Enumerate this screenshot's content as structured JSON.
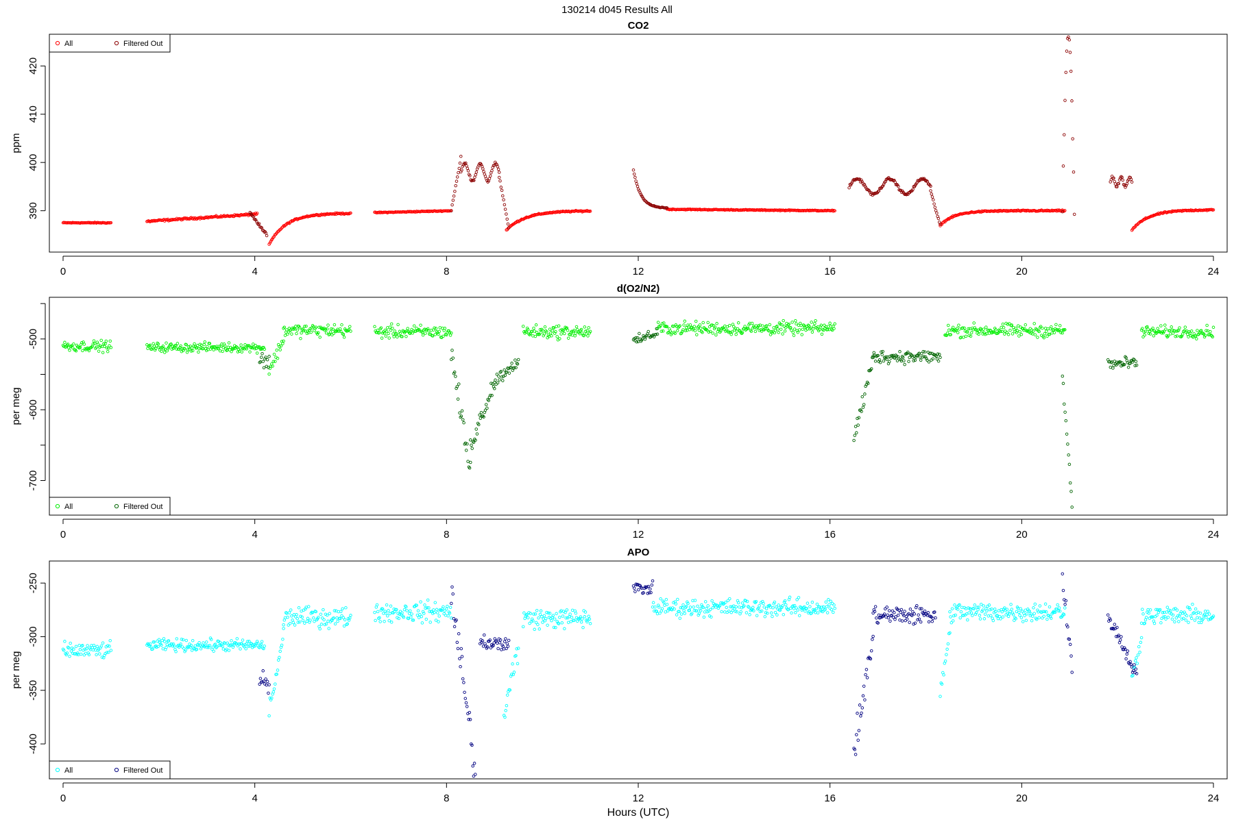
{
  "figure": {
    "title": "130214   d045   Results All"
  },
  "chart_data": [
    {
      "type": "scatter",
      "title": "CO2",
      "xlabel": "",
      "ylabel": "ppm",
      "xlim": [
        0,
        24
      ],
      "ylim": [
        382,
        426
      ],
      "xticks": [
        0,
        4,
        8,
        12,
        16,
        20,
        24
      ],
      "yticks": [
        390,
        400,
        410,
        420
      ],
      "legend_position": "top-left",
      "series": [
        {
          "name": "All",
          "color": "#ff0000",
          "segments": [
            {
              "x0": 0.0,
              "x1": 1.0,
              "shape": "flat",
              "level": 387.5,
              "noise": 0.1
            },
            {
              "x0": 1.75,
              "x1": 4.05,
              "shape": "linear",
              "from": 387.8,
              "to": 389.3,
              "noise": 0.2
            },
            {
              "x0": 4.3,
              "x1": 6.0,
              "shape": "recover",
              "from": 383.0,
              "to": 389.5,
              "tau": 0.35
            },
            {
              "x0": 6.5,
              "x1": 8.1,
              "shape": "linear",
              "from": 389.6,
              "to": 390.0,
              "noise": 0.1
            },
            {
              "x0": 9.25,
              "x1": 11.0,
              "shape": "recover",
              "from": 386.0,
              "to": 390.0,
              "tau": 0.4
            },
            {
              "x0": 12.6,
              "x1": 16.1,
              "shape": "linear",
              "from": 390.3,
              "to": 390.0,
              "noise": 0.1
            },
            {
              "x0": 18.3,
              "x1": 20.9,
              "shape": "recover",
              "from": 387.0,
              "to": 390.0,
              "tau": 0.3
            },
            {
              "x0": 22.3,
              "x1": 24.0,
              "shape": "recover",
              "from": 386.0,
              "to": 390.2,
              "tau": 0.35
            }
          ]
        },
        {
          "name": "Filtered Out",
          "color": "#8b0000",
          "segments": [
            {
              "x0": 3.9,
              "x1": 4.25,
              "shape": "linear",
              "from": 389.6,
              "to": 385.0,
              "noise": 0.3
            },
            {
              "x0": 8.1,
              "x1": 8.3,
              "shape": "linear",
              "from": 390.0,
              "to": 401.0,
              "noise": 0.3
            },
            {
              "x0": 8.3,
              "x1": 9.1,
              "shape": "wave",
              "level": 398.0,
              "amp": 1.8,
              "noise": 0.3
            },
            {
              "x0": 9.1,
              "x1": 9.3,
              "shape": "linear",
              "from": 397.0,
              "to": 386.5,
              "noise": 0.3
            },
            {
              "x0": 11.9,
              "x1": 12.6,
              "shape": "decay",
              "from": 398.5,
              "to": 390.5,
              "tau": 0.15
            },
            {
              "x0": 16.4,
              "x1": 18.1,
              "shape": "wave",
              "level": 395.0,
              "amp": 1.6,
              "noise": 0.3
            },
            {
              "x0": 18.1,
              "x1": 18.3,
              "shape": "linear",
              "from": 394.0,
              "to": 387.0,
              "noise": 0.3
            },
            {
              "x0": 20.85,
              "x1": 21.1,
              "shape": "spike",
              "from": 390.0,
              "peak": 426.5,
              "noise": 1.0
            },
            {
              "x0": 21.85,
              "x1": 22.3,
              "shape": "wave",
              "level": 396.0,
              "amp": 1.0,
              "noise": 0.3
            }
          ]
        }
      ]
    },
    {
      "type": "scatter",
      "title": "d(O2/N2)",
      "xlabel": "",
      "ylabel": "per meg",
      "xlim": [
        0,
        24
      ],
      "ylim": [
        -745,
        -445
      ],
      "xticks": [
        0,
        4,
        8,
        12,
        16,
        20,
        24
      ],
      "yticks": [
        -500,
        -600,
        -700
      ],
      "yticks_minor": [
        -450,
        -550,
        -650
      ],
      "legend_position": "bottom-left",
      "series": [
        {
          "name": "All",
          "color": "#00ee00",
          "segments": [
            {
              "x0": 0.0,
              "x1": 1.0,
              "shape": "flat",
              "level": -510,
              "noise": 8
            },
            {
              "x0": 1.75,
              "x1": 4.2,
              "shape": "flat",
              "level": -512,
              "noise": 7
            },
            {
              "x0": 4.3,
              "x1": 4.6,
              "shape": "linear",
              "from": -545,
              "to": -500,
              "noise": 10
            },
            {
              "x0": 4.6,
              "x1": 6.0,
              "shape": "flat",
              "level": -488,
              "noise": 10
            },
            {
              "x0": 6.5,
              "x1": 8.1,
              "shape": "flat",
              "level": -490,
              "noise": 10
            },
            {
              "x0": 9.6,
              "x1": 11.0,
              "shape": "flat",
              "level": -490,
              "noise": 10
            },
            {
              "x0": 12.4,
              "x1": 16.1,
              "shape": "flat",
              "level": -485,
              "noise": 10
            },
            {
              "x0": 18.4,
              "x1": 20.9,
              "shape": "flat",
              "level": -488,
              "noise": 10
            },
            {
              "x0": 22.5,
              "x1": 24.0,
              "shape": "flat",
              "level": -490,
              "noise": 9
            }
          ]
        },
        {
          "name": "Filtered Out",
          "color": "#006400",
          "segments": [
            {
              "x0": 4.1,
              "x1": 4.3,
              "shape": "flat",
              "level": -530,
              "noise": 12
            },
            {
              "x0": 8.1,
              "x1": 8.5,
              "shape": "linear",
              "from": -520,
              "to": -690,
              "noise": 20
            },
            {
              "x0": 8.5,
              "x1": 9.0,
              "shape": "linear",
              "from": -650,
              "to": -560,
              "noise": 15
            },
            {
              "x0": 9.0,
              "x1": 9.5,
              "shape": "linear",
              "from": -560,
              "to": -530,
              "noise": 10
            },
            {
              "x0": 11.9,
              "x1": 12.4,
              "shape": "linear",
              "from": -505,
              "to": -490,
              "noise": 8
            },
            {
              "x0": 16.5,
              "x1": 16.9,
              "shape": "linear",
              "from": -640,
              "to": -530,
              "noise": 15
            },
            {
              "x0": 16.9,
              "x1": 18.3,
              "shape": "flat",
              "level": -525,
              "noise": 10
            },
            {
              "x0": 20.85,
              "x1": 21.05,
              "shape": "linear",
              "from": -555,
              "to": -730,
              "noise": 15
            },
            {
              "x0": 21.8,
              "x1": 22.4,
              "shape": "flat",
              "level": -535,
              "noise": 10
            }
          ]
        }
      ]
    },
    {
      "type": "scatter",
      "title": "APO",
      "xlabel": "Hours (UTC)",
      "ylabel": "per meg",
      "xlim": [
        0,
        24
      ],
      "ylim": [
        -430,
        -232
      ],
      "xticks": [
        0,
        4,
        8,
        12,
        16,
        20,
        24
      ],
      "yticks": [
        -250,
        -300,
        -350,
        -400
      ],
      "legend_position": "bottom-left",
      "series": [
        {
          "name": "All",
          "color": "#00ffff",
          "segments": [
            {
              "x0": 0.0,
              "x1": 1.0,
              "shape": "flat",
              "level": -313,
              "noise": 8
            },
            {
              "x0": 1.75,
              "x1": 4.2,
              "shape": "flat",
              "level": -308,
              "noise": 6
            },
            {
              "x0": 4.3,
              "x1": 4.6,
              "shape": "linear",
              "from": -370,
              "to": -300,
              "noise": 10
            },
            {
              "x0": 4.6,
              "x1": 6.0,
              "shape": "flat",
              "level": -282,
              "noise": 10
            },
            {
              "x0": 6.5,
              "x1": 8.1,
              "shape": "flat",
              "level": -277,
              "noise": 10
            },
            {
              "x0": 9.2,
              "x1": 9.5,
              "shape": "linear",
              "from": -370,
              "to": -310,
              "noise": 15
            },
            {
              "x0": 9.6,
              "x1": 11.0,
              "shape": "flat",
              "level": -283,
              "noise": 10
            },
            {
              "x0": 12.3,
              "x1": 16.1,
              "shape": "flat",
              "level": -273,
              "noise": 9
            },
            {
              "x0": 18.3,
              "x1": 18.5,
              "shape": "linear",
              "from": -350,
              "to": -300,
              "noise": 10
            },
            {
              "x0": 18.5,
              "x1": 20.9,
              "shape": "flat",
              "level": -277,
              "noise": 10
            },
            {
              "x0": 22.3,
              "x1": 22.5,
              "shape": "linear",
              "from": -340,
              "to": -300,
              "noise": 8
            },
            {
              "x0": 22.5,
              "x1": 24.0,
              "shape": "flat",
              "level": -280,
              "noise": 9
            }
          ]
        },
        {
          "name": "Filtered Out",
          "color": "#000080",
          "segments": [
            {
              "x0": 4.1,
              "x1": 4.3,
              "shape": "flat",
              "level": -345,
              "noise": 15
            },
            {
              "x0": 8.1,
              "x1": 8.6,
              "shape": "linear",
              "from": -260,
              "to": -425,
              "noise": 20
            },
            {
              "x0": 8.7,
              "x1": 9.3,
              "shape": "flat",
              "level": -305,
              "noise": 8
            },
            {
              "x0": 11.9,
              "x1": 12.3,
              "shape": "flat",
              "level": -255,
              "noise": 6
            },
            {
              "x0": 16.5,
              "x1": 16.9,
              "shape": "linear",
              "from": -408,
              "to": -300,
              "noise": 15
            },
            {
              "x0": 16.9,
              "x1": 18.2,
              "shape": "flat",
              "level": -280,
              "noise": 10
            },
            {
              "x0": 20.85,
              "x1": 21.05,
              "shape": "linear",
              "from": -245,
              "to": -330,
              "noise": 10
            },
            {
              "x0": 21.8,
              "x1": 22.4,
              "shape": "linear",
              "from": -280,
              "to": -335,
              "noise": 8
            }
          ]
        }
      ]
    }
  ]
}
